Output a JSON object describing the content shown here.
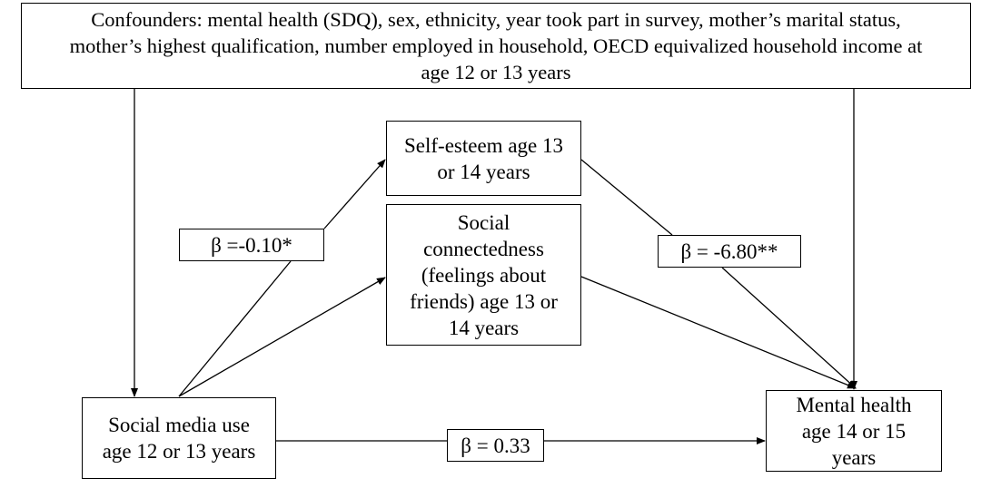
{
  "confounders": {
    "lines": [
      "Confounders: mental health (SDQ), sex, ethnicity, year took part in survey, mother’s marital status,",
      "mother’s highest qualification, number employed in household, OECD equivalized household income at",
      "age 12 or 13 years"
    ]
  },
  "nodes": {
    "self_esteem": {
      "lines": [
        "Self-esteem age 13",
        "or 14 years"
      ]
    },
    "social_connectedness": {
      "lines": [
        "Social",
        "connectedness",
        "(feelings about",
        "friends) age 13 or",
        "14 years"
      ]
    },
    "social_media_use": {
      "lines": [
        "Social media use",
        "age 12 or 13 years"
      ]
    },
    "mental_health": {
      "lines": [
        "Mental health",
        "age 14 or 15",
        "years"
      ]
    }
  },
  "coefficients": {
    "social_media_to_self_esteem": "β =-0.10*",
    "self_esteem_to_mental_health": "β = -6.80**",
    "social_media_to_mental_health": "β = 0.33"
  },
  "colors": {
    "line": "#000000",
    "background": "#ffffff"
  }
}
